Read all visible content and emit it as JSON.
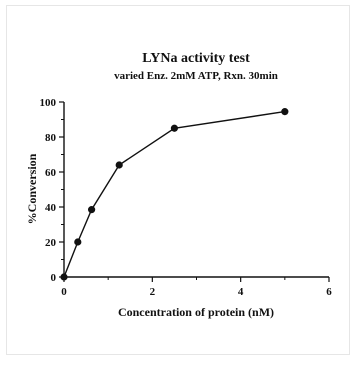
{
  "chart_data": {
    "type": "line",
    "title": "LYNa activity test",
    "subtitle": "varied Enz. 2mM ATP, Rxn. 30min",
    "xlabel": "Concentration of protein (nM)",
    "ylabel": "%Conversion",
    "xlim": [
      0,
      6
    ],
    "ylim": [
      0,
      100
    ],
    "x_ticks": [
      0,
      2,
      4,
      6
    ],
    "y_ticks": [
      0,
      20,
      40,
      60,
      80,
      100
    ],
    "grid": false,
    "series": [
      {
        "x": [
          0,
          0.3125,
          0.625,
          1.25,
          2.5,
          5
        ],
        "y": [
          0,
          20,
          38.5,
          64,
          85,
          94.5
        ]
      }
    ],
    "colors": {
      "line": "#111111",
      "marker": "#111111"
    }
  }
}
